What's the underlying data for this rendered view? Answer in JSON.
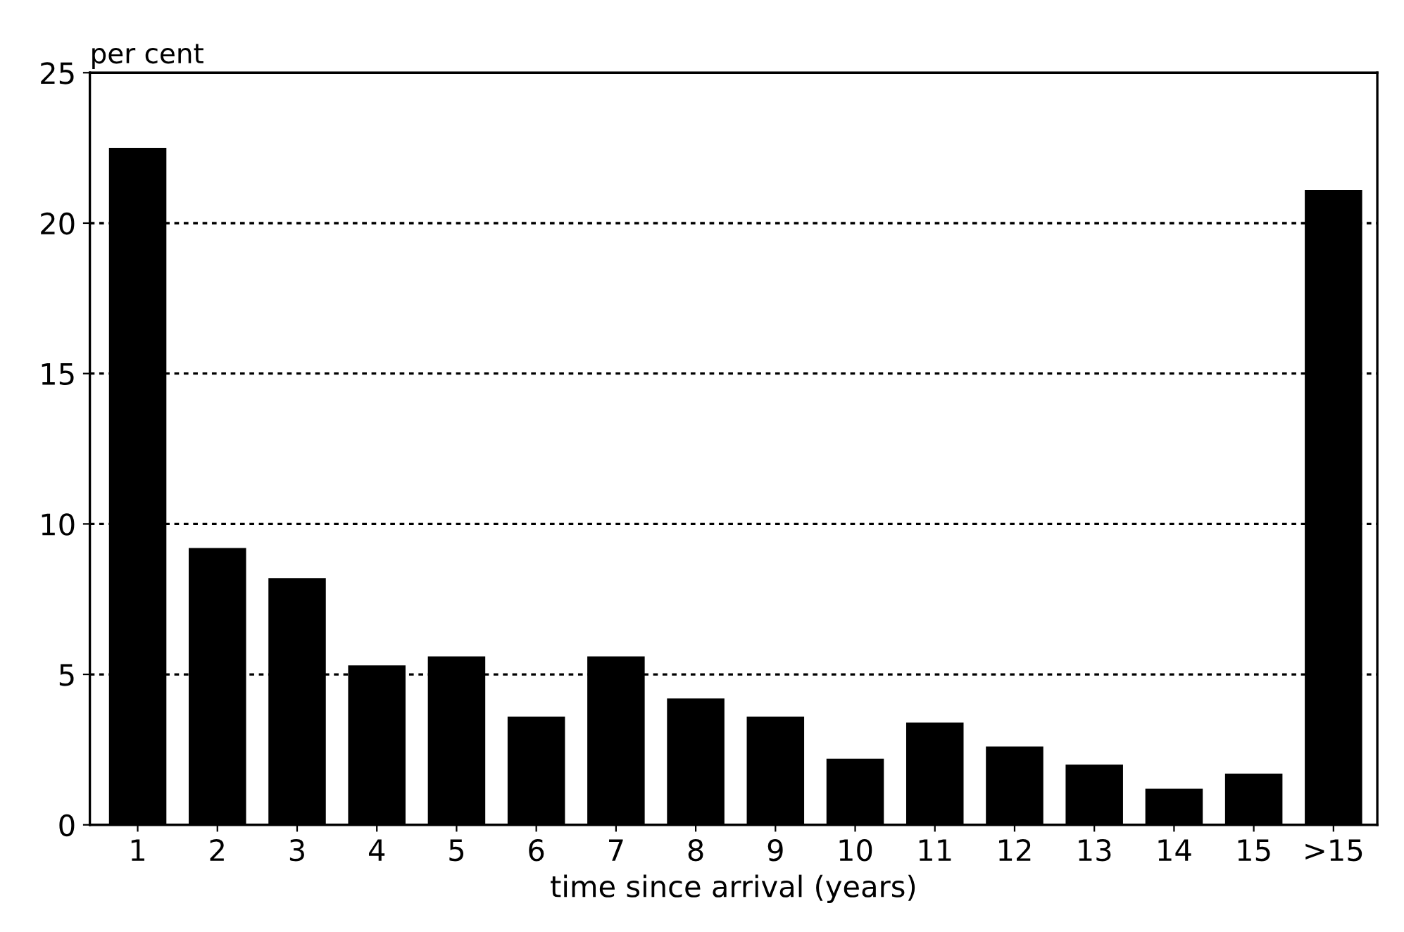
{
  "chart_data": {
    "type": "bar",
    "xlabel": "time since arrival (years)",
    "ylabel": "per cent",
    "categories": [
      "1",
      "2",
      "3",
      "4",
      "5",
      "6",
      "7",
      "8",
      "9",
      "10",
      "11",
      "12",
      "13",
      "14",
      "15",
      ">15"
    ],
    "values": [
      22.5,
      9.2,
      8.2,
      5.3,
      5.6,
      3.6,
      5.6,
      4.2,
      3.6,
      2.2,
      3.4,
      2.6,
      2.0,
      1.2,
      1.7,
      21.1
    ],
    "color": "#000000",
    "ylim": [
      0,
      25
    ],
    "yticks": [
      0,
      5,
      10,
      15,
      20,
      25
    ],
    "grid": "y",
    "line_style": "dotted"
  }
}
